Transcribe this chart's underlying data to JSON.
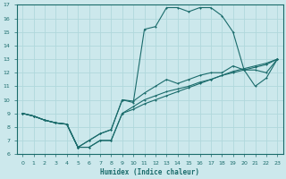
{
  "xlabel": "Humidex (Indice chaleur)",
  "xlim": [
    -0.5,
    23.5
  ],
  "ylim": [
    6,
    17
  ],
  "xticks": [
    0,
    1,
    2,
    3,
    4,
    5,
    6,
    7,
    8,
    9,
    10,
    11,
    12,
    13,
    14,
    15,
    16,
    17,
    18,
    19,
    20,
    21,
    22,
    23
  ],
  "yticks": [
    6,
    7,
    8,
    9,
    10,
    11,
    12,
    13,
    14,
    15,
    16,
    17
  ],
  "bg_color": "#cce8ec",
  "line_color": "#1a6b6b",
  "grid_color": "#b0d8dc",
  "line1_x": [
    0,
    1,
    2,
    3,
    4,
    5,
    6,
    7,
    8,
    9,
    10,
    11,
    12,
    13,
    14,
    15,
    16,
    17,
    18,
    19,
    20,
    21,
    22,
    23
  ],
  "line1_y": [
    9.0,
    8.8,
    8.5,
    8.3,
    8.2,
    6.5,
    7.0,
    7.5,
    7.8,
    10.0,
    9.8,
    15.2,
    15.4,
    16.8,
    16.8,
    16.5,
    16.8,
    16.8,
    16.2,
    15.0,
    12.2,
    11.0,
    11.6,
    13.0
  ],
  "line2_x": [
    0,
    1,
    2,
    3,
    4,
    5,
    6,
    7,
    8,
    9,
    10,
    11,
    12,
    13,
    14,
    15,
    16,
    17,
    18,
    19,
    20,
    21,
    22,
    23
  ],
  "line2_y": [
    9.0,
    8.8,
    8.5,
    8.3,
    8.2,
    6.5,
    7.0,
    7.5,
    7.8,
    10.0,
    9.9,
    10.5,
    11.0,
    11.5,
    11.2,
    11.5,
    11.8,
    12.0,
    12.0,
    12.5,
    12.2,
    12.2,
    12.0,
    13.0
  ],
  "line3_x": [
    0,
    1,
    2,
    3,
    4,
    5,
    6,
    7,
    8,
    9,
    10,
    11,
    12,
    13,
    14,
    15,
    16,
    17,
    18,
    19,
    20,
    21,
    22,
    23
  ],
  "line3_y": [
    9.0,
    8.8,
    8.5,
    8.3,
    8.2,
    6.5,
    6.5,
    7.0,
    7.0,
    9.0,
    9.5,
    10.0,
    10.3,
    10.6,
    10.8,
    11.0,
    11.3,
    11.5,
    11.8,
    12.0,
    12.2,
    12.4,
    12.6,
    13.0
  ],
  "line4_x": [
    0,
    1,
    2,
    3,
    4,
    5,
    6,
    7,
    8,
    9,
    10,
    11,
    12,
    13,
    14,
    15,
    16,
    17,
    18,
    19,
    20,
    21,
    22,
    23
  ],
  "line4_y": [
    9.0,
    8.8,
    8.5,
    8.3,
    8.2,
    6.5,
    6.5,
    7.0,
    7.0,
    9.0,
    9.3,
    9.7,
    10.0,
    10.3,
    10.6,
    10.9,
    11.2,
    11.5,
    11.8,
    12.1,
    12.3,
    12.5,
    12.7,
    13.0
  ]
}
